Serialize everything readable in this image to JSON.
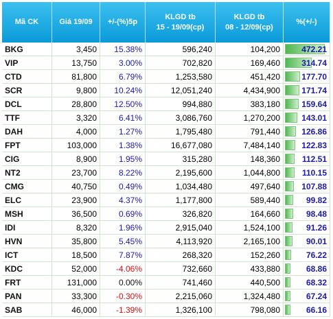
{
  "table": {
    "header": [
      [
        "Mã CK"
      ],
      [
        "Giá 19/09"
      ],
      [
        "+/-(%)5p"
      ],
      [
        "KLGD tb",
        "15 - 19/09(cp)"
      ],
      [
        "KLGD tb",
        "08 - 12/09(cp)"
      ],
      [
        "%(+/-)"
      ]
    ],
    "rows": [
      [
        "BKG",
        "3,450",
        "15.38%",
        "596,240",
        "104,200",
        "472.21"
      ],
      [
        "VIP",
        "13,750",
        "3.00%",
        "702,820",
        "169,460",
        "314.74"
      ],
      [
        "CTD",
        "81,800",
        "6.79%",
        "1,253,580",
        "451,420",
        "177.70"
      ],
      [
        "SCR",
        "9,800",
        "10.24%",
        "12,051,240",
        "4,434,900",
        "171.74"
      ],
      [
        "DCL",
        "28,800",
        "12.50%",
        "994,880",
        "383,180",
        "159.64"
      ],
      [
        "TTF",
        "3,320",
        "6.41%",
        "3,086,760",
        "1,270,200",
        "143.01"
      ],
      [
        "DAH",
        "4,000",
        "1.27%",
        "1,795,480",
        "791,440",
        "126.86"
      ],
      [
        "FPT",
        "103,000",
        "1.38%",
        "16,677,080",
        "7,484,140",
        "122.83"
      ],
      [
        "CIG",
        "8,900",
        "1.95%",
        "315,280",
        "148,360",
        "112.51"
      ],
      [
        "NT2",
        "23,700",
        "8.22%",
        "2,195,600",
        "1,044,800",
        "110.15"
      ],
      [
        "CMG",
        "40,750",
        "0.49%",
        "1,034,480",
        "497,640",
        "107.88"
      ],
      [
        "ELC",
        "23,900",
        "4.37%",
        "1,177,800",
        "589,440",
        "99.82"
      ],
      [
        "MSH",
        "36,500",
        "0.69%",
        "326,820",
        "164,660",
        "98.48"
      ],
      [
        "IDI",
        "8,320",
        "1.96%",
        "2,915,040",
        "1,524,100",
        "91.26"
      ],
      [
        "HVN",
        "35,800",
        "5.45%",
        "4,113,920",
        "2,165,100",
        "90.01"
      ],
      [
        "ICT",
        "18,500",
        "7.87%",
        "268,320",
        "152,260",
        "76.22"
      ],
      [
        "KDC",
        "52,000",
        "-4.06%",
        "732,660",
        "433,880",
        "68.86"
      ],
      [
        "FRT",
        "131,000",
        "0.00%",
        "741,460",
        "440,500",
        "68.32"
      ],
      [
        "PAN",
        "33,300",
        "-0.30%",
        "2,215,060",
        "1,324,480",
        "67.24"
      ],
      [
        "SAB",
        "46,000",
        "-1.39%",
        "1,326,100",
        "798,080",
        "66.16"
      ]
    ]
  }
}
